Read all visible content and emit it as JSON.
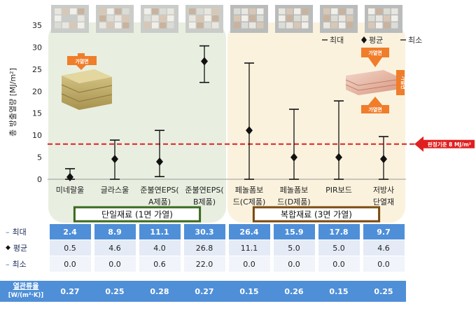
{
  "chart_data": {
    "type": "errorbar-scatter",
    "ylabel": "총 방출열량 [MJ/m²]",
    "ylim": [
      0,
      35
    ],
    "yticks": [
      0,
      5,
      10,
      15,
      20,
      25,
      30,
      35
    ],
    "categories": [
      "미네랄울",
      "글라스울",
      "준불연EPS(A제품)",
      "준불연EPS(B제품)",
      "페놀폼보드(C제품)",
      "페놀폼보드(D제품)",
      "PIR보드",
      "저방사단열재"
    ],
    "category_lines": [
      [
        "미네랄울"
      ],
      [
        "글라스울"
      ],
      [
        "준불연EPS(",
        "A제품)"
      ],
      [
        "준불연EPS(",
        "B제품)"
      ],
      [
        "페놀폼보",
        "드(C제품)"
      ],
      [
        "페놀폼보",
        "드(D제품)"
      ],
      [
        "PIR보드"
      ],
      [
        "저방사",
        "단열재"
      ]
    ],
    "series": [
      {
        "name": "최대",
        "values": [
          2.4,
          8.9,
          11.1,
          30.3,
          26.4,
          15.9,
          17.8,
          9.7
        ]
      },
      {
        "name": "평균",
        "values": [
          0.5,
          4.6,
          4.0,
          26.8,
          11.1,
          5.0,
          5.0,
          4.6
        ]
      },
      {
        "name": "최소",
        "values": [
          0.0,
          0.0,
          0.6,
          22.0,
          0.0,
          0.0,
          0.0,
          0.0
        ]
      }
    ],
    "legend": {
      "max": "최대",
      "avg": "평균",
      "min": "최소",
      "position": "top-right"
    },
    "reference_line": {
      "value": 8,
      "label": "판정기준 8 MJ/m²",
      "color": "#e02020"
    },
    "groups": [
      {
        "label": "단일재료 (1면 가열)",
        "start": 0,
        "end": 3,
        "fill": "#e8efe0",
        "border": "#3a6a20"
      },
      {
        "label": "복합재료 (3면 가열)",
        "start": 4,
        "end": 7,
        "fill": "#fbf2de",
        "border": "#7a4a10"
      }
    ],
    "annotations": {
      "left_arrow": "가열면",
      "right_top_arrow": "가열면",
      "right_side_arrow": "가열면",
      "right_bottom_arrow": "가열면"
    },
    "table": {
      "row_labels": [
        "최대",
        "평균",
        "최소"
      ],
      "thermal_label_line1": "열관류율",
      "thermal_label_line2": "[W/(m²·K)]",
      "thermal": [
        0.27,
        0.25,
        0.28,
        0.27,
        0.15,
        0.26,
        0.15,
        0.25
      ]
    },
    "colors": {
      "marker": "#111111",
      "table_blue": "#4f8fd8",
      "table_light": "#e4ebf6"
    }
  }
}
